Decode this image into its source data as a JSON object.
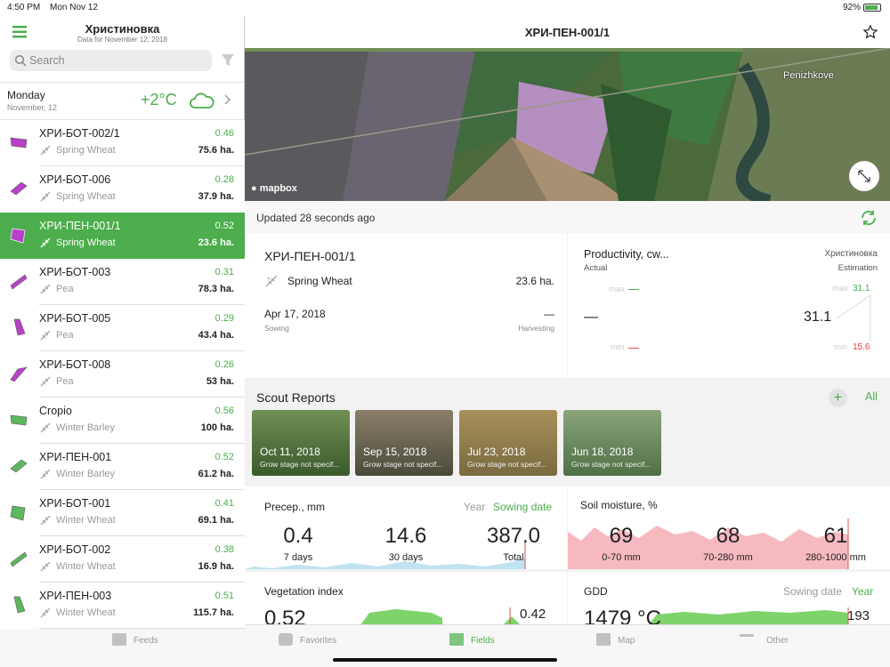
{
  "status": {
    "time": "4:50 PM",
    "date": "Mon Nov 12",
    "battery": "92%"
  },
  "sidebar": {
    "title": "Христиновка",
    "subtitle": "Data for November 12, 2018",
    "search": "Search",
    "weather": {
      "day": "Monday",
      "date": "November, 12",
      "temp": "+2°C"
    },
    "fields": [
      {
        "name": "ХРИ-БОТ-002/1",
        "crop": "Spring Wheat",
        "index": "0.46",
        "area": "75.6 ha."
      },
      {
        "name": "ХРИ-БОТ-006",
        "crop": "Spring Wheat",
        "index": "0.28",
        "area": "37.9 ha."
      },
      {
        "name": "ХРИ-ПЕН-001/1",
        "crop": "Spring Wheat",
        "index": "0.52",
        "area": "23.6 ha."
      },
      {
        "name": "ХРИ-БОТ-003",
        "crop": "Pea",
        "index": "0.31",
        "area": "78.3 ha."
      },
      {
        "name": "ХРИ-БОТ-005",
        "crop": "Pea",
        "index": "0.29",
        "area": "43.4 ha."
      },
      {
        "name": "ХРИ-БОТ-008",
        "crop": "Pea",
        "index": "0.26",
        "area": "53 ha."
      },
      {
        "name": "Cropio",
        "crop": "Winter Barley",
        "index": "0.56",
        "area": "100 ha."
      },
      {
        "name": "ХРИ-ПЕН-001",
        "crop": "Winter Barley",
        "index": "0.52",
        "area": "61.2 ha."
      },
      {
        "name": "ХРИ-БОТ-001",
        "crop": "Winter Wheat",
        "index": "0.41",
        "area": "69.1 ha."
      },
      {
        "name": "ХРИ-БОТ-002",
        "crop": "Winter Wheat",
        "index": "0.38",
        "area": "16.9 ha."
      },
      {
        "name": "ХРИ-ПЕН-003",
        "crop": "Winter Wheat",
        "index": "0.51",
        "area": "115.7 ha."
      }
    ]
  },
  "header": {
    "title": "ХРИ-ПЕН-001/1"
  },
  "map": {
    "place": "Penizhkove",
    "brand": "mapbox"
  },
  "updated": "Updated 28 seconds ago",
  "info": {
    "name": "ХРИ-ПЕН-001/1",
    "crop": "Spring Wheat",
    "area": "23.6 ha.",
    "sowing_date": "Apr 17, 2018",
    "sowing_label": "Sowing",
    "harvest_date": "—",
    "harvest_label": "Harvesting"
  },
  "productivity": {
    "title": "Productivity, cw...",
    "region": "Христиновка",
    "actual_label": "Actual",
    "estimation_label": "Estimation",
    "actual_max": "max",
    "actual_min": "min",
    "actual_value": "—",
    "estimation_value": "31.1",
    "est_max_label": "max",
    "est_max": "31.1",
    "est_min_label": "min",
    "est_min": "15.6"
  },
  "scout": {
    "title": "Scout Reports",
    "all": "All",
    "reports": [
      {
        "date": "Oct 11, 2018",
        "stage": "Grow stage not specif..."
      },
      {
        "date": "Sep 15, 2018",
        "stage": "Grow stage not specif..."
      },
      {
        "date": "Jul 23, 2018",
        "stage": "Grow stage not specif..."
      },
      {
        "date": "Jun 18, 2018",
        "stage": "Grow stage not specif..."
      }
    ]
  },
  "precip": {
    "title": "Precep., mm",
    "tab1": "Year",
    "tab2": "Sowing date",
    "stats": [
      {
        "value": "0.4",
        "label": "7 days"
      },
      {
        "value": "14.6",
        "label": "30 days"
      },
      {
        "value": "387.0",
        "label": "Total"
      }
    ]
  },
  "soil": {
    "title": "Soil moisture, %",
    "stats": [
      {
        "value": "69",
        "label": "0-70 mm"
      },
      {
        "value": "68",
        "label": "70-280 mm"
      },
      {
        "value": "61",
        "label": "280-1000 mm"
      }
    ]
  },
  "vegetation": {
    "title": "Vegetation index",
    "value": "0.52",
    "last": "0.42"
  },
  "gdd": {
    "title": "GDD",
    "tab1": "Sowing date",
    "tab2": "Year",
    "value": "1479 °C",
    "last": "193"
  },
  "tabs": [
    "Feeds",
    "Favorites",
    "Fields",
    "Map",
    "Other"
  ]
}
